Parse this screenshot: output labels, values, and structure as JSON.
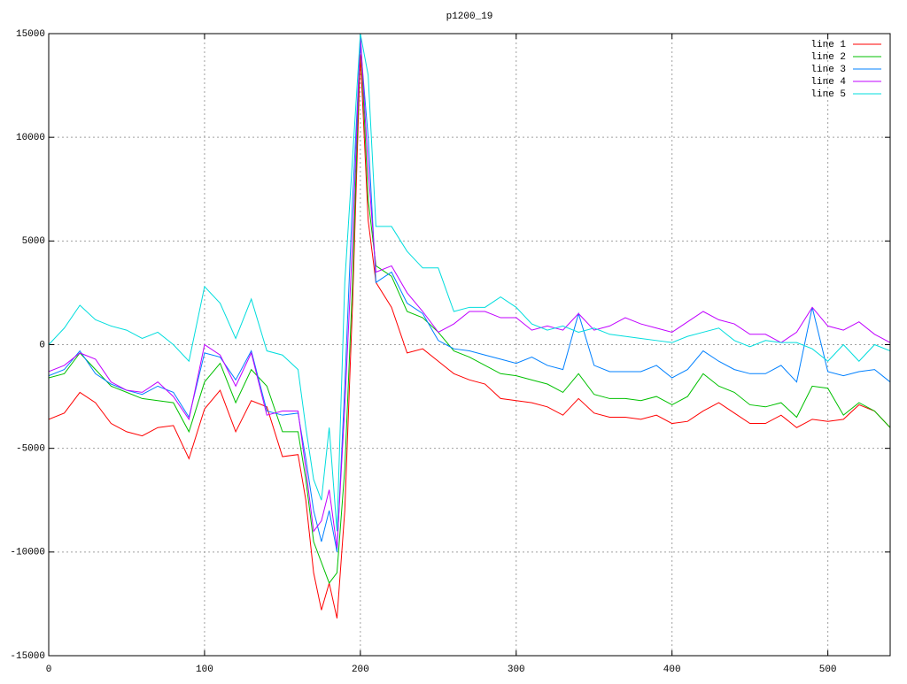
{
  "chart_data": {
    "type": "line",
    "title": "p1200_19",
    "x": [
      0,
      10,
      20,
      30,
      40,
      50,
      60,
      70,
      80,
      90,
      100,
      110,
      120,
      130,
      140,
      150,
      160,
      165,
      170,
      175,
      180,
      185,
      190,
      195,
      200,
      205,
      210,
      220,
      230,
      240,
      250,
      260,
      270,
      280,
      290,
      300,
      310,
      320,
      330,
      340,
      350,
      360,
      370,
      380,
      390,
      400,
      410,
      420,
      430,
      440,
      450,
      460,
      470,
      480,
      490,
      500,
      510,
      520,
      530,
      540
    ],
    "series": [
      {
        "name": "line 1",
        "color": "#ff0000",
        "values": [
          -3600,
          -3300,
          -2300,
          -2800,
          -3800,
          -4200,
          -4400,
          -4000,
          -3900,
          -5500,
          -3100,
          -2200,
          -4200,
          -2700,
          -3000,
          -5400,
          -5300,
          -7500,
          -11000,
          -12800,
          -11500,
          -13200,
          -8000,
          2000,
          14000,
          6000,
          3000,
          1800,
          -400,
          -200,
          -800,
          -1400,
          -1700,
          -1900,
          -2600,
          -2700,
          -2800,
          -3000,
          -3400,
          -2600,
          -3300,
          -3500,
          -3500,
          -3600,
          -3400,
          -3800,
          -3700,
          -3200,
          -2800,
          -3300,
          -3800,
          -3800,
          -3400,
          -4000,
          -3600,
          -3700,
          -3600,
          -2900,
          -3200,
          -4000
        ]
      },
      {
        "name": "line 2",
        "color": "#00c000",
        "values": [
          -1600,
          -1400,
          -400,
          -1200,
          -2000,
          -2300,
          -2600,
          -2700,
          -2800,
          -4200,
          -1800,
          -900,
          -2800,
          -1200,
          -2000,
          -4200,
          -4200,
          -6500,
          -9500,
          -10500,
          -11500,
          -11000,
          -6000,
          3000,
          15000,
          7000,
          3800,
          3300,
          1600,
          1300,
          600,
          -300,
          -600,
          -1000,
          -1400,
          -1500,
          -1700,
          -1900,
          -2300,
          -1400,
          -2400,
          -2600,
          -2600,
          -2700,
          -2500,
          -2900,
          -2500,
          -1400,
          -2000,
          -2300,
          -2900,
          -3000,
          -2800,
          -3500,
          -2000,
          -2100,
          -3400,
          -2800,
          -3200,
          -4000
        ]
      },
      {
        "name": "line 3",
        "color": "#0080ff",
        "values": [
          -1500,
          -1200,
          -300,
          -1400,
          -1900,
          -2200,
          -2400,
          -2000,
          -2300,
          -3500,
          -400,
          -600,
          -1700,
          -300,
          -3200,
          -3400,
          -3300,
          -5500,
          -8000,
          -9500,
          -8000,
          -10000,
          -2000,
          7000,
          14500,
          10000,
          3000,
          3500,
          2000,
          1500,
          200,
          -200,
          -300,
          -500,
          -700,
          -900,
          -600,
          -1000,
          -1200,
          1500,
          -1000,
          -1300,
          -1300,
          -1300,
          -1000,
          -1600,
          -1200,
          -300,
          -800,
          -1200,
          -1400,
          -1400,
          -1000,
          -1800,
          1800,
          -1300,
          -1500,
          -1300,
          -1200,
          -1800
        ]
      },
      {
        "name": "line 4",
        "color": "#c000ff",
        "values": [
          -1300,
          -1000,
          -400,
          -700,
          -1800,
          -2200,
          -2300,
          -1800,
          -2500,
          -3600,
          0,
          -500,
          -2000,
          -400,
          -3400,
          -3200,
          -3200,
          -6000,
          -9000,
          -8500,
          -7000,
          -9800,
          -3000,
          5000,
          15000,
          8500,
          3500,
          3800,
          2500,
          1600,
          600,
          1000,
          1600,
          1600,
          1300,
          1300,
          700,
          900,
          700,
          1500,
          700,
          900,
          1300,
          1000,
          800,
          600,
          1100,
          1600,
          1200,
          1000,
          500,
          500,
          100,
          600,
          1800,
          900,
          700,
          1100,
          500,
          100
        ]
      },
      {
        "name": "line 5",
        "color": "#00dddd",
        "values": [
          0,
          800,
          1900,
          1200,
          900,
          700,
          300,
          600,
          0,
          -800,
          2800,
          2000,
          300,
          2200,
          -300,
          -500,
          -1200,
          -4000,
          -6500,
          -7500,
          -4000,
          -9000,
          3000,
          9000,
          15000,
          13000,
          5700,
          5700,
          4500,
          3700,
          3700,
          1600,
          1800,
          1800,
          2300,
          1800,
          1000,
          700,
          900,
          600,
          800,
          500,
          400,
          300,
          200,
          100,
          400,
          600,
          800,
          200,
          -100,
          200,
          100,
          100,
          -200,
          -800,
          0,
          -800,
          0,
          -300
        ]
      }
    ],
    "xlim": [
      0,
      540
    ],
    "ylim": [
      -15000,
      15000
    ],
    "xticks": [
      0,
      100,
      200,
      300,
      400,
      500
    ],
    "yticks": [
      -15000,
      -10000,
      -5000,
      0,
      5000,
      10000,
      15000
    ],
    "grid": true,
    "legend": "top-right"
  }
}
